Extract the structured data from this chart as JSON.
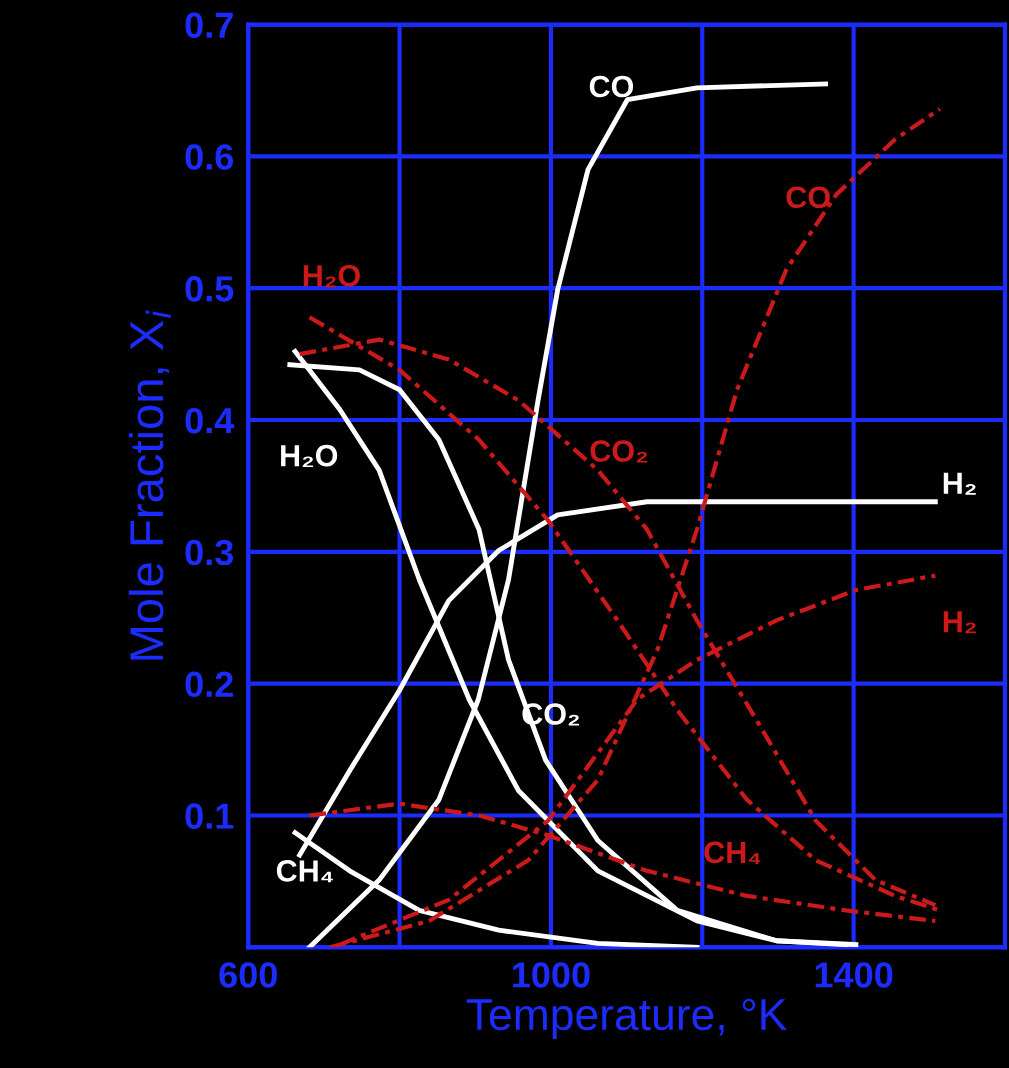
{
  "chart_data": {
    "type": "line",
    "xlabel": "Temperature, °K",
    "ylabel": "Mole Fraction, X$_{i}$",
    "xlim": [
      600,
      1600
    ],
    "xticks": [
      600,
      {
        "value": 800,
        "label": null
      },
      1000,
      {
        "value": 1200,
        "label": null
      },
      1400,
      {
        "value": 1600,
        "label": null
      }
    ],
    "ylim": [
      0,
      0.7
    ],
    "yticks": [
      {
        "value": 0,
        "label": null
      },
      0.1,
      0.2,
      0.3,
      0.4,
      0.5,
      0.6,
      0.7
    ],
    "grid": true,
    "legend": false,
    "marker": "none",
    "series": [
      {
        "name": "CO",
        "color": "#ffffff",
        "line_style": "solid",
        "x": [
          681,
          773,
          852,
          904,
          944,
          983,
          1009,
          1049,
          1101,
          1193,
          1363
        ],
        "values": [
          0,
          0.051,
          0.112,
          0.188,
          0.279,
          0.415,
          0.499,
          0.59,
          0.643,
          0.652,
          0.655
        ]
      },
      {
        "name": "H₂O",
        "color": "#ffffff",
        "line_style": "solid",
        "x": [
          662,
          721,
          773,
          826,
          892,
          957,
          1062,
          1193,
          1298,
          1390
        ],
        "values": [
          0.452,
          0.408,
          0.362,
          0.279,
          0.188,
          0.119,
          0.058,
          0.02,
          0.005,
          0.002
        ]
      },
      {
        "name": "CO₂",
        "color": "#ffffff",
        "line_style": "solid",
        "x": [
          655,
          747,
          800,
          852,
          905,
          944,
          993,
          1062,
          1167,
          1298,
          1403
        ],
        "values": [
          0.442,
          0.438,
          0.423,
          0.385,
          0.317,
          0.218,
          0.142,
          0.081,
          0.028,
          0.005,
          0.002
        ]
      },
      {
        "name": "CH₄",
        "color": "#ffffff",
        "line_style": "solid",
        "x": [
          662,
          734,
          826,
          931,
          1062,
          1193
        ],
        "values": [
          0.087,
          0.058,
          0.028,
          0.013,
          0.003,
          0
        ]
      },
      {
        "name": "H₂",
        "color": "#ffffff",
        "line_style": "solid",
        "x": [
          668,
          734,
          800,
          865,
          931,
          1009,
          1127,
          1508
        ],
        "values": [
          0.07,
          0.134,
          0.195,
          0.263,
          0.301,
          0.328,
          0.338,
          0.338
        ]
      },
      {
        "name": "H₂O",
        "color": "#cc1a1a",
        "line_style": "dashdot",
        "x": [
          681,
          800,
          905,
          996,
          1088,
          1167,
          1259,
          1350,
          1455,
          1514
        ],
        "values": [
          0.478,
          0.438,
          0.385,
          0.324,
          0.248,
          0.18,
          0.112,
          0.066,
          0.039,
          0.028
        ]
      },
      {
        "name": "CO",
        "color": "#cc1a1a",
        "line_style": "dashdot",
        "x": [
          708,
          839,
          970,
          1062,
          1141,
          1193,
          1246,
          1311,
          1377,
          1455,
          1514
        ],
        "values": [
          0,
          0.02,
          0.066,
          0.127,
          0.226,
          0.317,
          0.423,
          0.514,
          0.571,
          0.613,
          0.636
        ]
      },
      {
        "name": "CO₂",
        "color": "#cc1a1a",
        "line_style": "dashdot",
        "x": [
          668,
          773,
          865,
          957,
          1062,
          1127,
          1193,
          1272,
          1350,
          1429,
          1508
        ],
        "values": [
          0.45,
          0.461,
          0.446,
          0.415,
          0.362,
          0.317,
          0.248,
          0.172,
          0.096,
          0.051,
          0.032
        ]
      },
      {
        "name": "H₂",
        "color": "#cc1a1a",
        "line_style": "dashdot",
        "x": [
          721,
          865,
          996,
          1114,
          1193,
          1298,
          1403,
          1508
        ],
        "values": [
          0.002,
          0.036,
          0.096,
          0.188,
          0.218,
          0.248,
          0.271,
          0.282
        ]
      },
      {
        "name": "CH₄",
        "color": "#cc1a1a",
        "line_style": "dashdot",
        "x": [
          681,
          800,
          905,
          996,
          1127,
          1259,
          1390,
          1508
        ],
        "values": [
          0.1,
          0.109,
          0.1,
          0.085,
          0.058,
          0.039,
          0.028,
          0.02
        ]
      }
    ]
  }
}
